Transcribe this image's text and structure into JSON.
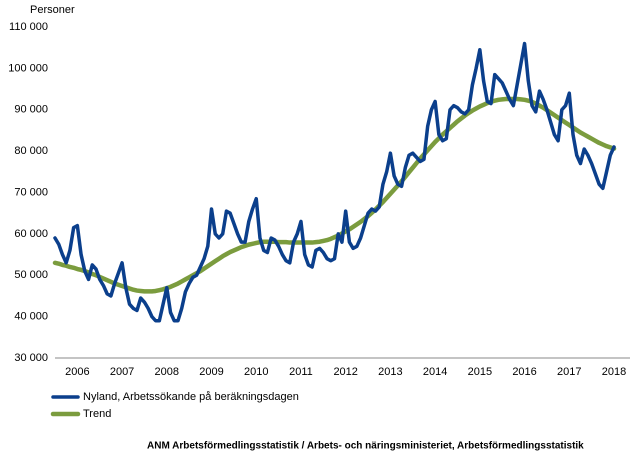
{
  "chart_data": {
    "type": "line",
    "ylabel": "Personer",
    "source": "ANM Arbetsförmedlingsstatistik / Arbets- och näringsministeriet, Arbetsförmedlingsstatistik",
    "categories": [
      null,
      null,
      null,
      null,
      null,
      null,
      "2006",
      null,
      null,
      null,
      null,
      null,
      null,
      null,
      null,
      null,
      null,
      null,
      "2007",
      null,
      null,
      null,
      null,
      null,
      null,
      null,
      null,
      null,
      null,
      null,
      "2008",
      null,
      null,
      null,
      null,
      null,
      null,
      null,
      null,
      null,
      null,
      null,
      "2009",
      null,
      null,
      null,
      null,
      null,
      null,
      null,
      null,
      null,
      null,
      null,
      "2010",
      null,
      null,
      null,
      null,
      null,
      null,
      null,
      null,
      null,
      null,
      null,
      "2011",
      null,
      null,
      null,
      null,
      null,
      null,
      null,
      null,
      null,
      null,
      null,
      "2012",
      null,
      null,
      null,
      null,
      null,
      null,
      null,
      null,
      null,
      null,
      null,
      "2013",
      null,
      null,
      null,
      null,
      null,
      null,
      null,
      null,
      null,
      null,
      null,
      "2014",
      null,
      null,
      null,
      null,
      null,
      null,
      null,
      null,
      null,
      null,
      null,
      "2015",
      null,
      null,
      null,
      null,
      null,
      null,
      null,
      null,
      null,
      null,
      null,
      "2016",
      null,
      null,
      null,
      null,
      null,
      null,
      null,
      null,
      null,
      null,
      null,
      "2017",
      null,
      null,
      null,
      null,
      null,
      null,
      null,
      null,
      null,
      null,
      null,
      "2018"
    ],
    "series": [
      {
        "name": "Nyland, Arbetssökande på beräkningsdagen",
        "color": "#0b3f8c",
        "width": 3.5,
        "values": [
          59000,
          57500,
          55000,
          53000,
          56000,
          61500,
          62000,
          55000,
          51000,
          49000,
          52500,
          51500,
          49000,
          47500,
          45500,
          45000,
          48000,
          50500,
          53000,
          47000,
          43000,
          42000,
          41500,
          44500,
          43500,
          42000,
          40000,
          39000,
          39000,
          43000,
          47000,
          41000,
          39000,
          39000,
          42000,
          46000,
          48000,
          49500,
          50000,
          52000,
          54000,
          57000,
          66000,
          60000,
          59000,
          60000,
          65500,
          65000,
          62500,
          60000,
          58000,
          58000,
          63000,
          66000,
          68500,
          59000,
          56000,
          55500,
          59000,
          58500,
          57000,
          55000,
          53500,
          53000,
          58000,
          60000,
          63000,
          55000,
          52500,
          52000,
          56000,
          56500,
          55500,
          54000,
          53500,
          54000,
          60000,
          58000,
          65500,
          58000,
          56500,
          57000,
          59000,
          62000,
          65000,
          66000,
          65500,
          66500,
          72000,
          75000,
          79500,
          74000,
          72000,
          71500,
          76000,
          79000,
          79500,
          78500,
          77500,
          78000,
          86000,
          90000,
          92000,
          84000,
          82500,
          83000,
          90000,
          91000,
          90500,
          89500,
          89000,
          90000,
          96000,
          100000,
          104500,
          97000,
          92000,
          91500,
          98500,
          97500,
          96500,
          94500,
          92500,
          91000,
          96000,
          101000,
          106000,
          97000,
          91000,
          89500,
          94500,
          92500,
          90000,
          87000,
          84000,
          82500,
          90000,
          91000,
          94000,
          84000,
          79000,
          77000,
          80500,
          79000,
          77000,
          74500,
          72000,
          71000,
          75000,
          79000,
          81000
        ]
      },
      {
        "name": "Trend",
        "color": "#7b9c3e",
        "width": 4.5,
        "values": [
          53000,
          52800,
          52500,
          52300,
          52000,
          51800,
          51500,
          51300,
          51000,
          50700,
          50300,
          50000,
          49600,
          49200,
          48800,
          48400,
          48000,
          47700,
          47400,
          47100,
          46800,
          46500,
          46300,
          46200,
          46100,
          46100,
          46100,
          46200,
          46400,
          46600,
          46900,
          47200,
          47600,
          48000,
          48500,
          49000,
          49500,
          50000,
          50500,
          51000,
          51600,
          52200,
          52800,
          53400,
          54000,
          54600,
          55100,
          55600,
          56000,
          56400,
          56800,
          57100,
          57400,
          57600,
          57800,
          58000,
          58100,
          58100,
          58100,
          58100,
          58000,
          58000,
          58000,
          57900,
          57900,
          57900,
          57900,
          57900,
          57900,
          57900,
          58000,
          58100,
          58300,
          58500,
          58800,
          59200,
          59600,
          60100,
          60600,
          61100,
          61700,
          62300,
          62900,
          63600,
          64300,
          65100,
          65900,
          66800,
          67700,
          68700,
          69700,
          70700,
          71700,
          72700,
          73800,
          74900,
          76000,
          77100,
          78200,
          79200,
          80200,
          81200,
          82200,
          83100,
          84000,
          84800,
          85600,
          86400,
          87200,
          87900,
          88600,
          89200,
          89800,
          90300,
          90800,
          91200,
          91600,
          91900,
          92200,
          92400,
          92500,
          92600,
          92600,
          92600,
          92600,
          92500,
          92400,
          92200,
          91900,
          91500,
          91000,
          90500,
          89900,
          89300,
          88700,
          88100,
          87500,
          86900,
          86300,
          85700,
          85100,
          84500,
          84000,
          83500,
          83000,
          82500,
          82000,
          81600,
          81200,
          80900,
          80600
        ]
      }
    ],
    "ylim": [
      30000,
      110000
    ],
    "yticks": [
      {
        "value": 30000,
        "label": "30 000"
      },
      {
        "value": 40000,
        "label": "40 000"
      },
      {
        "value": 50000,
        "label": "50 000"
      },
      {
        "value": 60000,
        "label": "60 000"
      },
      {
        "value": 70000,
        "label": "70 000"
      },
      {
        "value": 80000,
        "label": "80 000"
      },
      {
        "value": 90000,
        "label": "90 000"
      },
      {
        "value": 100000,
        "label": "100 000"
      },
      {
        "value": 110000,
        "label": "110 000"
      }
    ],
    "grid": false,
    "legend": "bottom-left"
  }
}
